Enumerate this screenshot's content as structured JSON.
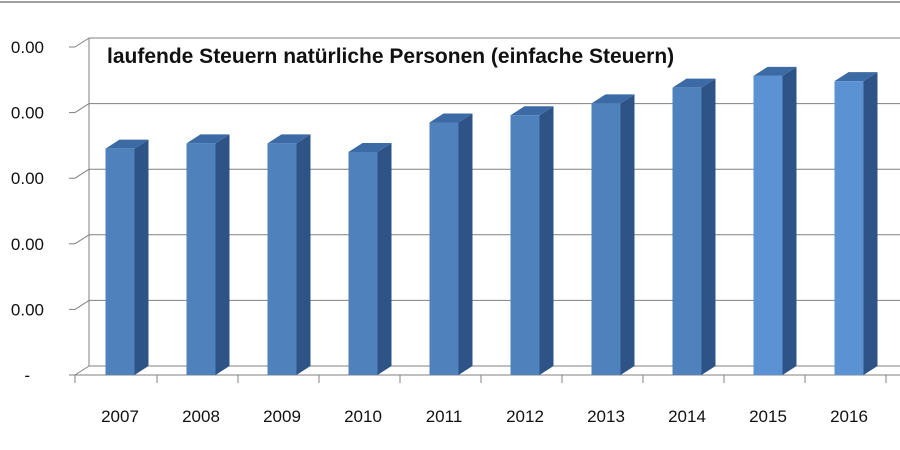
{
  "chart_data": {
    "type": "bar",
    "title": "laufende Steuern natürliche Personen (einfache Steuern)",
    "categories": [
      "2007",
      "2008",
      "2009",
      "2010",
      "2011",
      "2012",
      "2013",
      "2014",
      "2015",
      "2016"
    ],
    "values": [
      3.45,
      3.53,
      3.53,
      3.4,
      3.85,
      3.96,
      4.14,
      4.38,
      4.56,
      4.48
    ],
    "y_tick_labels": [
      "-",
      "0.00",
      "0.00",
      "0.00",
      "0.00",
      "0.00"
    ],
    "ylim": [
      0,
      5
    ],
    "xlabel": "",
    "ylabel": "",
    "grid": true,
    "colors": {
      "bar_front": "#4f81bd",
      "bar_front_highlight": "#5b92d4",
      "bar_side": "#2e5487",
      "bar_top": "#3b6aa4",
      "grid": "#808080"
    }
  }
}
